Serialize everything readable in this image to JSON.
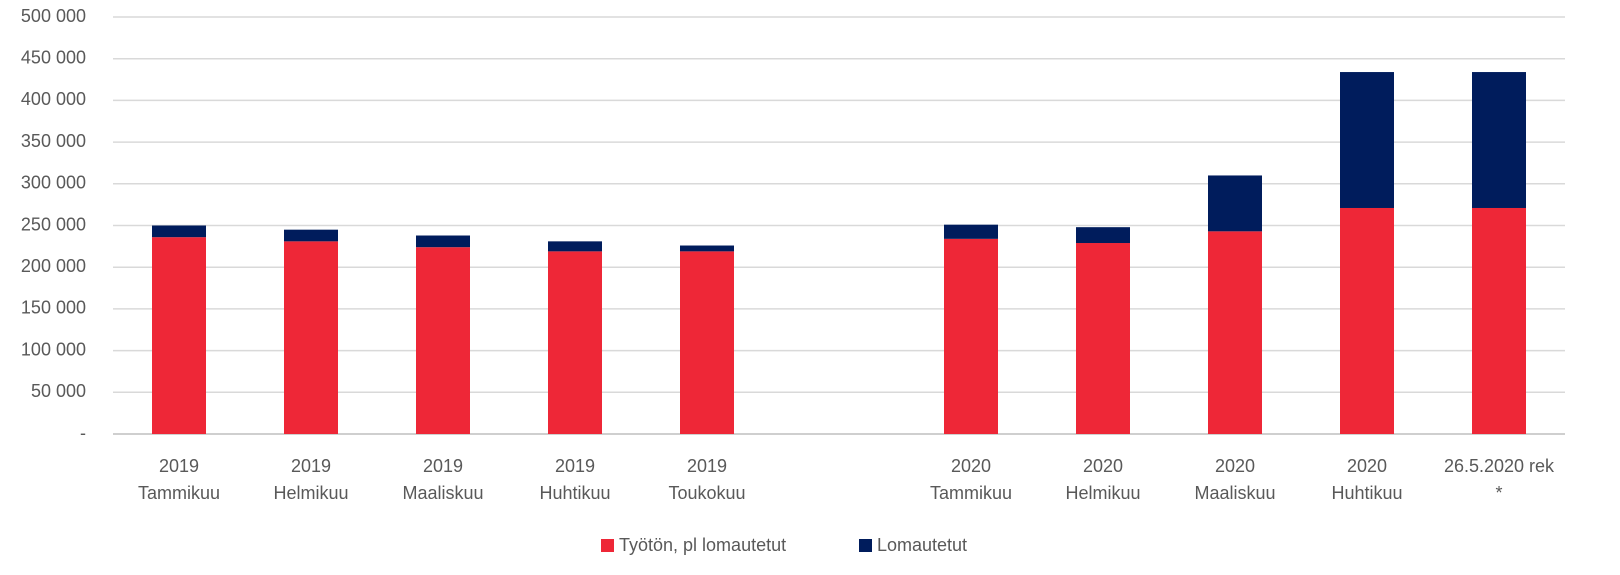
{
  "chart_data": {
    "type": "stacked-bar",
    "categories": [
      [
        "2019",
        "Tammikuu"
      ],
      [
        "2019",
        "Helmikuu"
      ],
      [
        "2019",
        "Maaliskuu"
      ],
      [
        "2019",
        "Huhtikuu"
      ],
      [
        "2019",
        "Toukokuu"
      ],
      null,
      [
        "2020",
        "Tammikuu"
      ],
      [
        "2020",
        "Helmikuu"
      ],
      [
        "2020",
        "Maaliskuu"
      ],
      [
        "2020",
        "Huhtikuu"
      ],
      [
        "26.5.2020 rek",
        "*"
      ]
    ],
    "series": [
      {
        "name": "Työtön, pl lomautetut",
        "color": "#ee2737",
        "values": [
          236000,
          231000,
          224000,
          219000,
          219000,
          null,
          234000,
          229000,
          243000,
          271000,
          271000
        ]
      },
      {
        "name": "Lomautetut",
        "color": "#001c5c",
        "values": [
          14000,
          14000,
          14000,
          12000,
          7000,
          null,
          17000,
          19000,
          67000,
          163000,
          163000
        ]
      }
    ],
    "ylim": [
      0,
      500000
    ],
    "yticks": [
      {
        "value": 0,
        "label": "-"
      },
      {
        "value": 50000,
        "label": "50 000"
      },
      {
        "value": 100000,
        "label": "100 000"
      },
      {
        "value": 150000,
        "label": "150 000"
      },
      {
        "value": 200000,
        "label": "200 000"
      },
      {
        "value": 250000,
        "label": "250 000"
      },
      {
        "value": 300000,
        "label": "300 000"
      },
      {
        "value": 350000,
        "label": "350 000"
      },
      {
        "value": 400000,
        "label": "400 000"
      },
      {
        "value": 450000,
        "label": "450 000"
      },
      {
        "value": 500000,
        "label": "500 000"
      }
    ],
    "grid": true,
    "legend": "bottom"
  }
}
